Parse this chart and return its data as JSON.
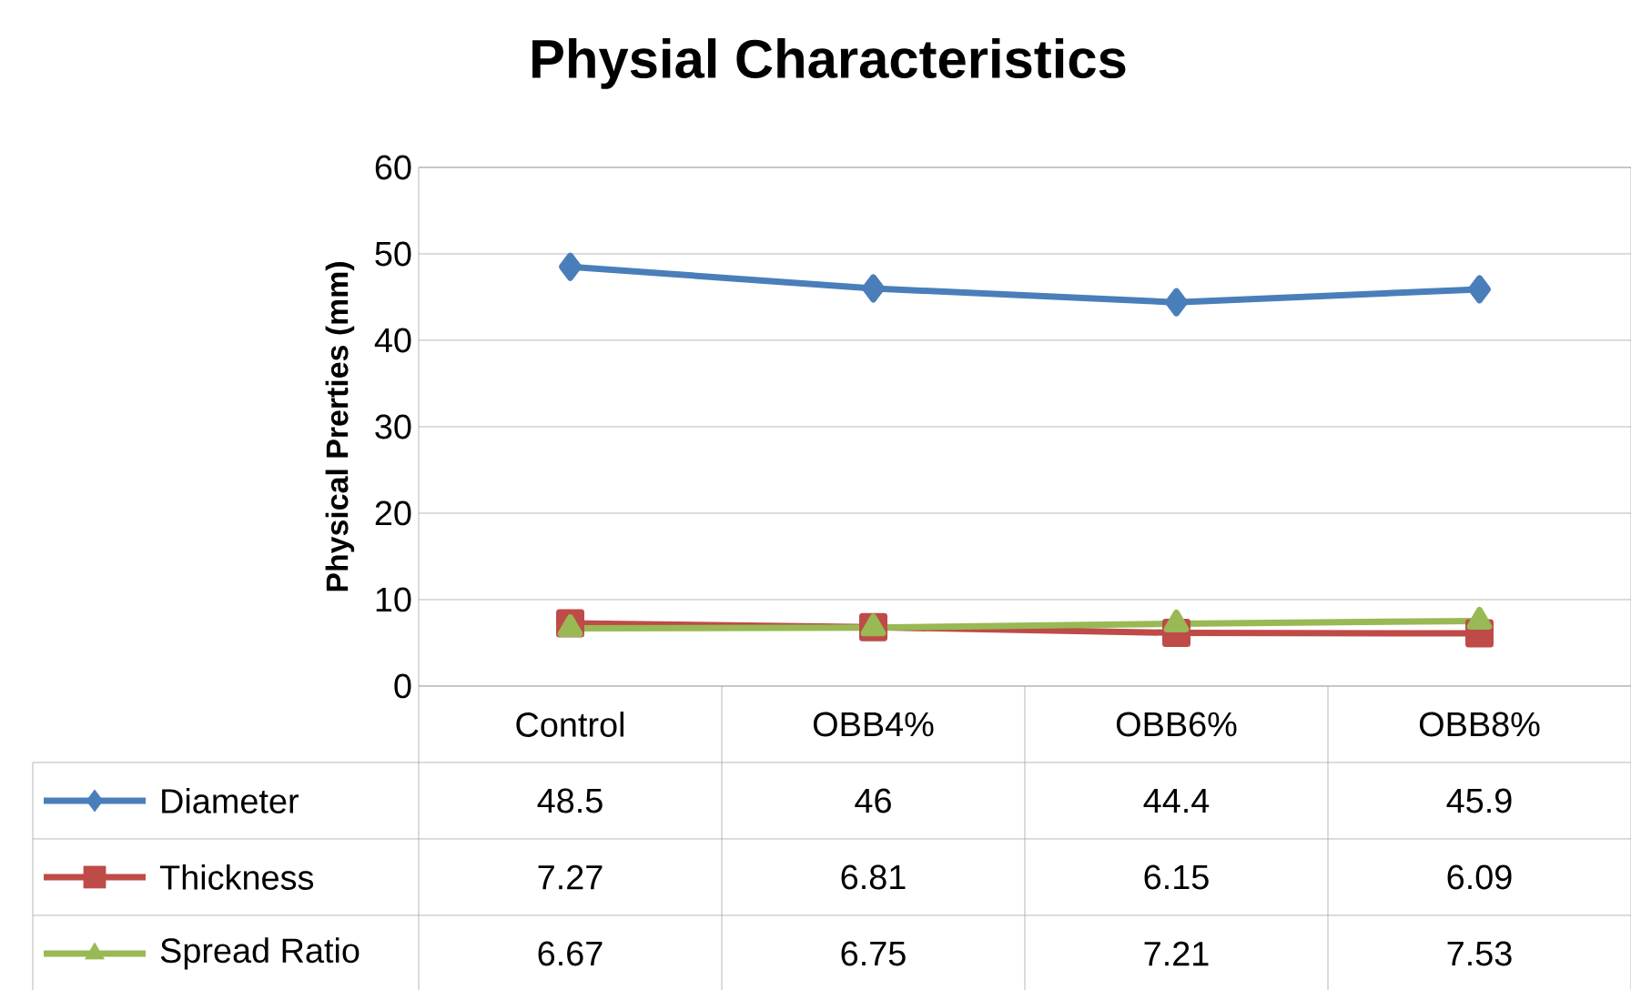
{
  "chart_data": {
    "type": "line",
    "title": "Physial Characteristics",
    "ylabel": "Physical Prerties (mm)",
    "categories": [
      "Control",
      "OBB4%",
      "OBB6%",
      "OBB8%"
    ],
    "series": [
      {
        "name": "Diameter",
        "color": "#4a7ebb",
        "marker": "diamond",
        "values": [
          48.5,
          46,
          44.4,
          45.9
        ]
      },
      {
        "name": "Thickness",
        "color": "#be4b48",
        "marker": "square",
        "values": [
          7.27,
          6.81,
          6.15,
          6.09
        ]
      },
      {
        "name": "Spread Ratio",
        "color": "#98b954",
        "marker": "triangle",
        "values": [
          6.67,
          6.75,
          7.21,
          7.53
        ]
      }
    ],
    "ylim": [
      0,
      60
    ],
    "yticks": [
      0,
      10,
      20,
      30,
      40,
      50,
      60
    ],
    "grid": "y",
    "legend": "bottom left",
    "data_labels": true,
    "line_style": "solid"
  }
}
